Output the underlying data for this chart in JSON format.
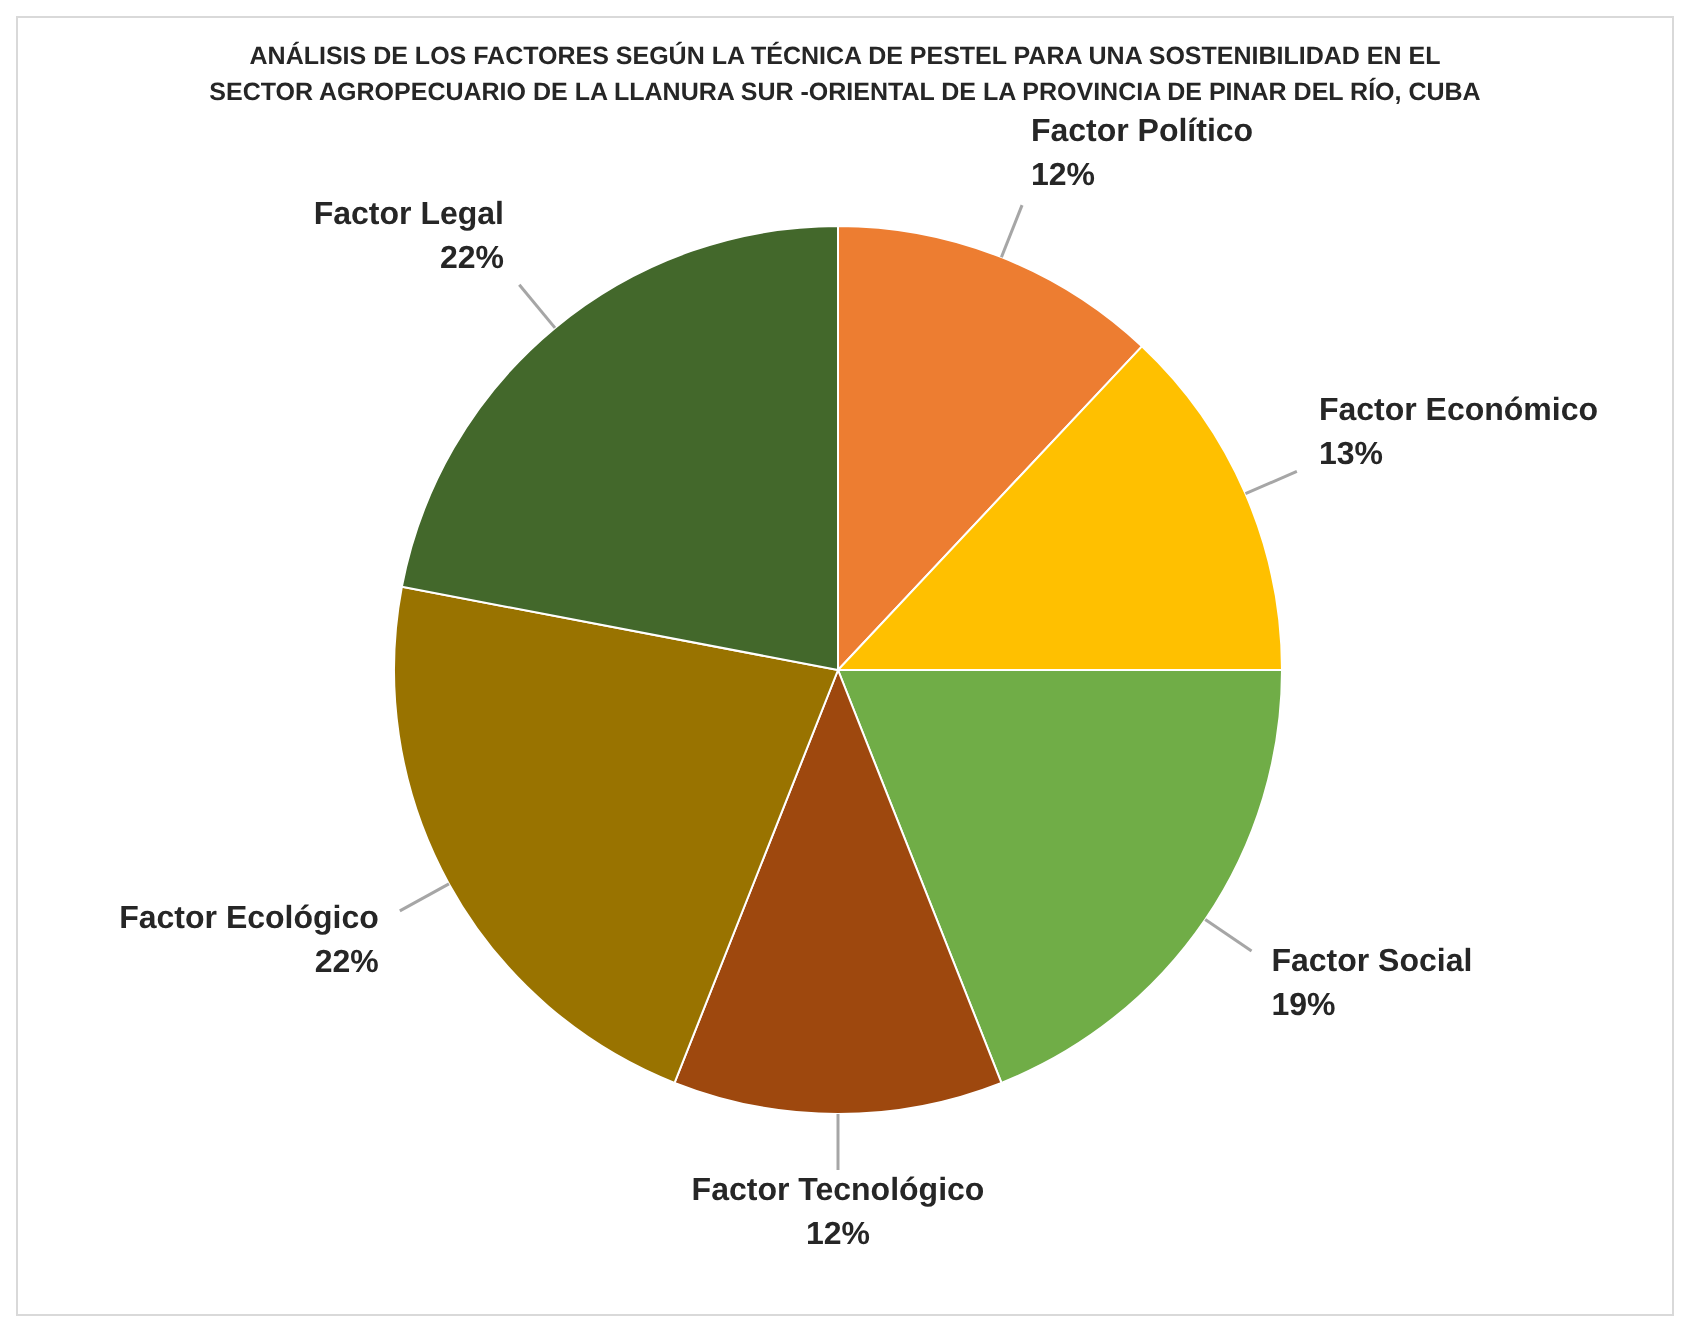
{
  "chart_data": {
    "type": "pie",
    "title": "ANÁLISIS DE LOS FACTORES SEGÚN LA TÉCNICA DE PESTEL PARA UNA SOSTENIBILIDAD EN EL SECTOR AGROPECUARIO DE LA LLANURA SUR -ORIENTAL DE LA PROVINCIA DE PINAR DEL RÍO, CUBA",
    "categories": [
      "Factor Político",
      "Factor Económico",
      "Factor Social",
      "Factor Tecnológico",
      "Factor Ecológico",
      "Factor Legal"
    ],
    "values": [
      12,
      13,
      19,
      12,
      22,
      22
    ],
    "value_labels": [
      "12%",
      "13%",
      "19%",
      "12%",
      "22%",
      "22%"
    ],
    "colors": [
      "#ed7d31",
      "#ffc000",
      "#70ad47",
      "#9e480e",
      "#997300",
      "#43682b"
    ]
  }
}
